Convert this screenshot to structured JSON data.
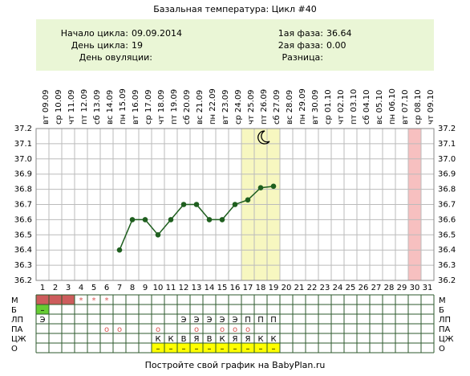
{
  "info": {
    "start_label": "Начало цикла:",
    "start": "09.09.2014",
    "day_label": "День цикла:",
    "day": 19,
    "ovul_label": "День овуляции:",
    "phase1_label": "1ая фаза:",
    "phase1": 36.64,
    "phase2_label": "2ая фаза:",
    "phase2": "0.00",
    "diff_label": "Разница:"
  },
  "footer": "Постройте свой график на BabyPlan.ru",
  "chart_data": {
    "type": "line",
    "title": "Базальная температура: Цикл #40",
    "categories": [
      "09.09",
      "10.09",
      "11.09",
      "12.09",
      "13.09",
      "14.09",
      "15.09",
      "16.09",
      "17.09",
      "18.09",
      "19.09",
      "20.09",
      "21.09",
      "22.09",
      "23.09",
      "24.09",
      "25.09",
      "26.09",
      "27.09",
      "28.09",
      "29.09",
      "30.09",
      "01.10",
      "02.10",
      "03.10",
      "04.10",
      "05.10",
      "06.10",
      "07.10",
      "08.10",
      "09.10"
    ],
    "weekdays": [
      "вт",
      "ср",
      "чт",
      "пт",
      "сб",
      "вс",
      "пн",
      "вт",
      "ср",
      "чт",
      "пт",
      "сб",
      "вс",
      "пн",
      "вт",
      "ср",
      "чт",
      "пт",
      "сб",
      "вс",
      "пн",
      "вт",
      "ср",
      "чт",
      "пт",
      "сб",
      "вс",
      "пн",
      "вт",
      "ср",
      "чт"
    ],
    "day_numbers": [
      1,
      2,
      3,
      4,
      5,
      6,
      7,
      8,
      9,
      10,
      11,
      12,
      13,
      14,
      15,
      16,
      17,
      18,
      19,
      20,
      21,
      22,
      23,
      24,
      25,
      26,
      27,
      28,
      29,
      30,
      31
    ],
    "values": [
      null,
      null,
      null,
      null,
      null,
      null,
      36.4,
      36.6,
      36.6,
      36.5,
      36.6,
      36.7,
      36.7,
      36.6,
      36.6,
      36.7,
      36.73,
      36.81,
      36.82,
      null,
      null,
      null,
      null,
      null,
      null,
      null,
      null,
      null,
      null,
      null,
      null
    ],
    "color": "#1f5f1f",
    "ylim": [
      36.2,
      37.2
    ],
    "yticks": [
      36.2,
      36.3,
      36.4,
      36.5,
      36.6,
      36.7,
      36.8,
      36.9,
      {
        "value": 37,
        "label": "37.0"
      },
      37.1,
      37.2
    ],
    "grid": true,
    "highlight_days": [
      17,
      18,
      19
    ],
    "highlight_color": "#f7f7c0",
    "period_days": [
      30
    ],
    "period_color": "#f7c0c0"
  },
  "table": {
    "rows": [
      {
        "label": "М",
        "fill_days": [
          1,
          2,
          3
        ],
        "fill_color": "#cd5c5c",
        "text_color": "#d9534f",
        "cells": [
          null,
          null,
          null,
          "*",
          "*",
          "*",
          null,
          null,
          null,
          null,
          null,
          null,
          null,
          null,
          null,
          null,
          null,
          null,
          null,
          null,
          null,
          null,
          null,
          null,
          null,
          null,
          null,
          null,
          null,
          null,
          null
        ]
      },
      {
        "label": "Б",
        "fill_days": [
          1
        ],
        "fill_color": "#66cc33",
        "text_color": "#000",
        "cells": [
          "–",
          null,
          null,
          null,
          null,
          null,
          null,
          null,
          null,
          null,
          null,
          null,
          null,
          null,
          null,
          null,
          null,
          null,
          null,
          null,
          null,
          null,
          null,
          null,
          null,
          null,
          null,
          null,
          null,
          null,
          null
        ]
      },
      {
        "label": "ЛП",
        "fill_days": [],
        "fill_color": "#fff",
        "text_color": "#000",
        "cells": [
          "Э",
          null,
          null,
          null,
          null,
          null,
          null,
          null,
          null,
          null,
          null,
          "Э",
          "Э",
          "Э",
          "Э",
          "Э",
          "П",
          "П",
          "П",
          null,
          null,
          null,
          null,
          null,
          null,
          null,
          null,
          null,
          null,
          null,
          null
        ]
      },
      {
        "label": "ПА",
        "fill_days": [],
        "fill_color": "#fff",
        "text_color": "#d9534f",
        "cells": [
          null,
          null,
          null,
          null,
          null,
          "o",
          "o",
          null,
          null,
          "o",
          null,
          null,
          "o",
          null,
          "o",
          "o",
          "o",
          null,
          null,
          null,
          null,
          null,
          null,
          null,
          null,
          null,
          null,
          null,
          null,
          null,
          null
        ]
      },
      {
        "label": "ЦЖ",
        "fill_days": [],
        "fill_color": "#fff",
        "text_color": "#000",
        "cells": [
          null,
          null,
          null,
          null,
          null,
          null,
          null,
          null,
          null,
          "К",
          "К",
          "В",
          "Я",
          "В",
          "К",
          "Я",
          "Я",
          "К",
          "К",
          null,
          null,
          null,
          null,
          null,
          null,
          null,
          null,
          null,
          null,
          null,
          null
        ]
      },
      {
        "label": "О",
        "fill_days": [
          10,
          11,
          12,
          13,
          14,
          15,
          16,
          17,
          18,
          19
        ],
        "fill_color": "#ffff00",
        "text_color": "#000",
        "cells": [
          null,
          null,
          null,
          null,
          null,
          null,
          null,
          null,
          null,
          "–",
          "–",
          "–",
          "–",
          "–",
          "–",
          "–",
          "–",
          "–",
          "–",
          null,
          null,
          null,
          null,
          null,
          null,
          null,
          null,
          null,
          null,
          null,
          null
        ]
      }
    ]
  }
}
